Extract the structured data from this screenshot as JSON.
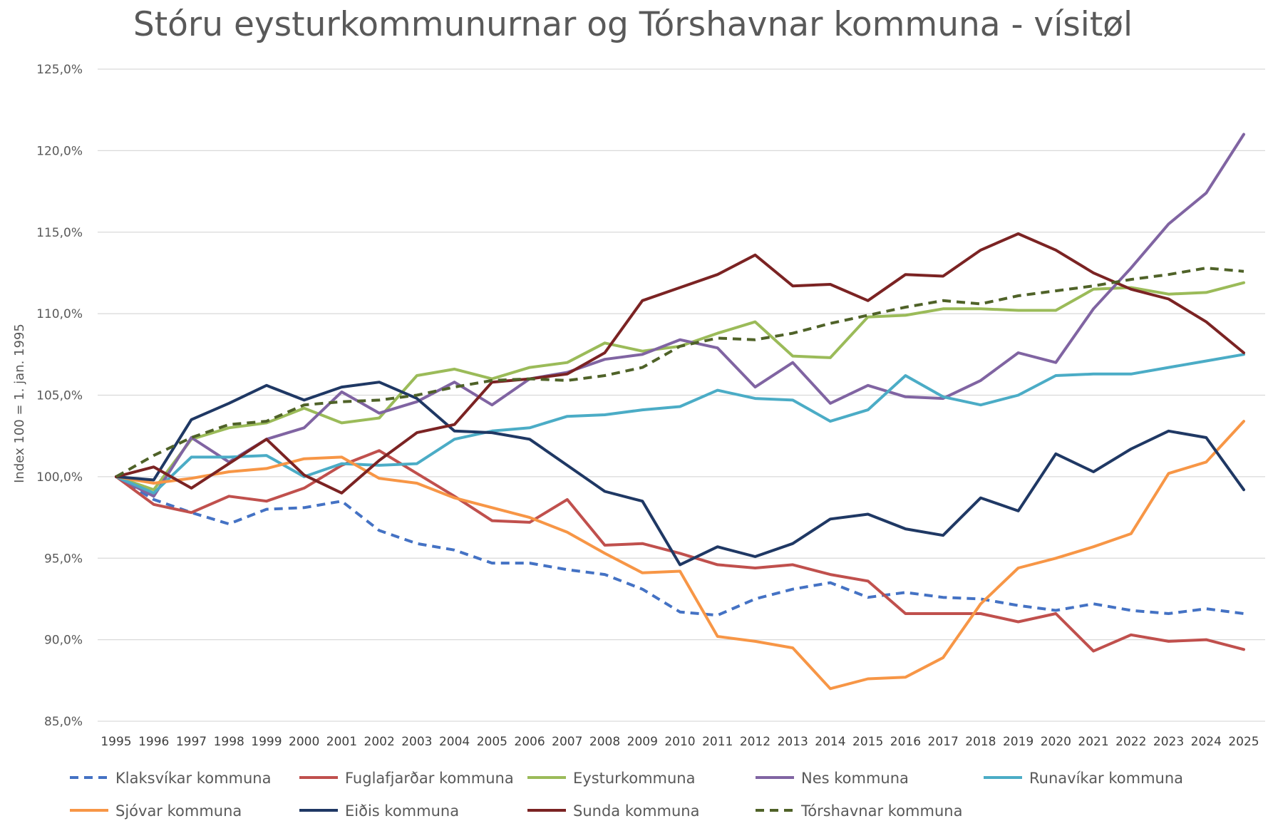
{
  "chart_data": {
    "type": "line",
    "title": "Stóru eysturkommunurnar og Tórshavnar kommuna - vísitøl",
    "ylabel": "Index 100 = 1. jan. 1995",
    "xlabel": "",
    "ylim": [
      85,
      125
    ],
    "yticks": [
      "85,0%",
      "90,0%",
      "95,0%",
      "100,0%",
      "105,0%",
      "110,0%",
      "115,0%",
      "120,0%",
      "125,0%"
    ],
    "grid": true,
    "legend_position": "bottom",
    "categories": [
      "1995",
      "1996",
      "1997",
      "1998",
      "1999",
      "2000",
      "2001",
      "2002",
      "2003",
      "2004",
      "2005",
      "2006",
      "2007",
      "2008",
      "2009",
      "2010",
      "2011",
      "2012",
      "2013",
      "2014",
      "2015",
      "2016",
      "2017",
      "2018",
      "2019",
      "2020",
      "2021",
      "2022",
      "2023",
      "2024",
      "2025"
    ],
    "series": [
      {
        "name": "Klaksvíkar kommuna",
        "color": "#4472c4",
        "dashed": true,
        "values": [
          100,
          98.6,
          97.8,
          97.1,
          98.0,
          98.1,
          98.5,
          96.7,
          95.9,
          95.5,
          94.7,
          94.7,
          94.3,
          94.0,
          93.1,
          91.7,
          91.5,
          92.5,
          93.1,
          93.5,
          92.6,
          92.9,
          92.6,
          92.5,
          92.1,
          91.8,
          92.2,
          91.8,
          91.6,
          91.9,
          91.6
        ]
      },
      {
        "name": "Fuglafjarðar kommuna",
        "color": "#c0504d",
        "dashed": false,
        "values": [
          100,
          98.3,
          97.8,
          98.8,
          98.5,
          99.3,
          100.7,
          101.6,
          100.2,
          98.8,
          97.3,
          97.2,
          98.6,
          95.8,
          95.9,
          95.3,
          94.6,
          94.4,
          94.6,
          94.0,
          93.6,
          91.6,
          91.6,
          91.6,
          91.1,
          91.6,
          89.3,
          90.3,
          89.9,
          90.0,
          89.4
        ]
      },
      {
        "name": "Eysturkommuna",
        "color": "#9bbb59",
        "dashed": false,
        "values": [
          100,
          99.2,
          102.3,
          103.0,
          103.3,
          104.2,
          103.3,
          103.6,
          106.2,
          106.6,
          106.0,
          106.7,
          107.0,
          108.2,
          107.7,
          108.0,
          108.8,
          109.5,
          107.4,
          107.3,
          109.8,
          109.9,
          110.3,
          110.3,
          110.2,
          110.2,
          111.5,
          111.6,
          111.2,
          111.3,
          111.9
        ]
      },
      {
        "name": "Nes kommuna",
        "color": "#8064a2",
        "dashed": false,
        "values": [
          100,
          98.8,
          102.4,
          100.9,
          102.3,
          103.0,
          105.2,
          103.9,
          104.6,
          105.8,
          104.4,
          106.0,
          106.4,
          107.2,
          107.5,
          108.4,
          107.9,
          105.5,
          107.0,
          104.5,
          105.6,
          104.9,
          104.8,
          105.9,
          107.6,
          107.0,
          110.3,
          112.8,
          115.5,
          117.4,
          121.0
        ]
      },
      {
        "name": "Runavíkar kommuna",
        "color": "#4bacc6",
        "dashed": false,
        "values": [
          100,
          99.0,
          101.2,
          101.2,
          101.3,
          100.0,
          100.8,
          100.7,
          100.8,
          102.3,
          102.8,
          103.0,
          103.7,
          103.8,
          104.1,
          104.3,
          105.3,
          104.8,
          104.7,
          103.4,
          104.1,
          106.2,
          104.9,
          104.4,
          105.0,
          106.2,
          106.3,
          106.3,
          106.7,
          107.1,
          107.5
        ]
      },
      {
        "name": "Sjóvar kommuna",
        "color": "#f79646",
        "dashed": false,
        "values": [
          100,
          99.6,
          99.9,
          100.3,
          100.5,
          101.1,
          101.2,
          99.9,
          99.6,
          98.7,
          98.1,
          97.5,
          96.6,
          95.3,
          94.1,
          94.2,
          90.2,
          89.9,
          89.5,
          87.0,
          87.6,
          87.7,
          88.9,
          92.2,
          94.4,
          95.0,
          95.7,
          96.5,
          100.2,
          100.9,
          103.4
        ]
      },
      {
        "name": "Eiðis kommuna",
        "color": "#1f3864",
        "dashed": false,
        "values": [
          100,
          99.8,
          103.5,
          104.5,
          105.6,
          104.7,
          105.5,
          105.8,
          104.8,
          102.8,
          102.7,
          102.3,
          100.7,
          99.1,
          98.5,
          94.6,
          95.7,
          95.1,
          95.9,
          97.4,
          97.7,
          96.8,
          96.4,
          98.7,
          97.9,
          101.4,
          100.3,
          101.7,
          102.8,
          102.4,
          99.2
        ]
      },
      {
        "name": "Sunda kommuna",
        "color": "#7b2323",
        "dashed": false,
        "values": [
          100,
          100.6,
          99.3,
          100.8,
          102.3,
          100.1,
          99.0,
          101.0,
          102.7,
          103.2,
          105.8,
          106.0,
          106.3,
          107.6,
          110.8,
          111.6,
          112.4,
          113.6,
          111.7,
          111.8,
          110.8,
          112.4,
          112.3,
          113.9,
          114.9,
          113.9,
          112.5,
          111.5,
          110.9,
          109.5,
          107.6
        ]
      },
      {
        "name": "Tórshavnar kommuna",
        "color": "#4f6228",
        "dashed": true,
        "values": [
          100,
          101.3,
          102.4,
          103.2,
          103.4,
          104.4,
          104.6,
          104.7,
          105.0,
          105.5,
          105.9,
          106.0,
          105.9,
          106.2,
          106.7,
          108.0,
          108.5,
          108.4,
          108.8,
          109.4,
          109.9,
          110.4,
          110.8,
          110.6,
          111.1,
          111.4,
          111.7,
          112.1,
          112.4,
          112.8,
          112.6
        ]
      }
    ]
  }
}
